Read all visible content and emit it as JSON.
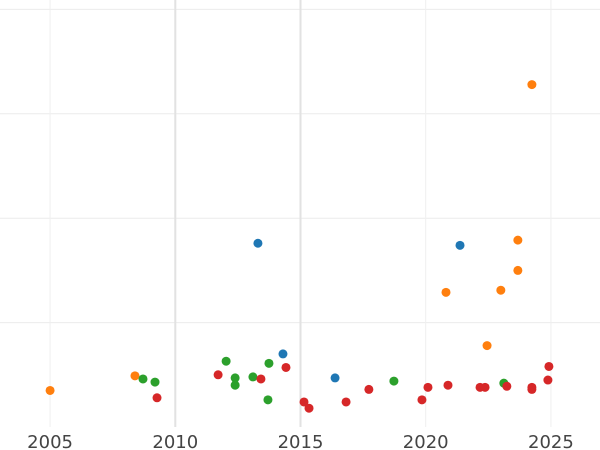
{
  "chart_data": {
    "type": "scatter",
    "title": "",
    "xlabel": "",
    "ylabel": "",
    "xlim": [
      2003.0,
      2026.96
    ],
    "ylim": [
      0,
      4.09
    ],
    "grid": true,
    "x_ticks": [
      2005,
      2010,
      2015,
      2020,
      2025
    ],
    "x_tick_labels": [
      "2005",
      "2010",
      "2015",
      "2020",
      "2025"
    ],
    "y_gridlines": [
      1,
      2,
      3,
      4
    ],
    "colors": {
      "orange": "#ff7f0e",
      "blue": "#1f77b4",
      "green": "#2ca02c",
      "red": "#d62728"
    },
    "series": [
      {
        "name": "orange",
        "color": "#ff7f0e",
        "points": [
          [
            2005.0,
            0.35
          ],
          [
            2008.39,
            0.49
          ],
          [
            2024.24,
            3.28
          ],
          [
            2023.68,
            1.79
          ],
          [
            2023.68,
            1.5
          ],
          [
            2020.81,
            1.29
          ],
          [
            2023.0,
            1.31
          ],
          [
            2022.45,
            0.78
          ]
        ]
      },
      {
        "name": "blue",
        "color": "#1f77b4",
        "points": [
          [
            2013.3,
            1.76
          ],
          [
            2021.37,
            1.74
          ],
          [
            2014.3,
            0.7
          ],
          [
            2016.38,
            0.47
          ]
        ]
      },
      {
        "name": "green",
        "color": "#2ca02c",
        "points": [
          [
            2008.71,
            0.46
          ],
          [
            2009.19,
            0.43
          ],
          [
            2012.03,
            0.63
          ],
          [
            2012.39,
            0.47
          ],
          [
            2012.39,
            0.4
          ],
          [
            2013.1,
            0.48
          ],
          [
            2013.74,
            0.61
          ],
          [
            2013.7,
            0.26
          ],
          [
            2018.73,
            0.44
          ],
          [
            2023.12,
            0.42
          ]
        ]
      },
      {
        "name": "red",
        "color": "#d62728",
        "points": [
          [
            2009.27,
            0.28
          ],
          [
            2011.71,
            0.5
          ],
          [
            2013.42,
            0.46
          ],
          [
            2014.42,
            0.57
          ],
          [
            2015.14,
            0.24
          ],
          [
            2015.34,
            0.18
          ],
          [
            2016.82,
            0.24
          ],
          [
            2017.73,
            0.36
          ],
          [
            2019.85,
            0.26
          ],
          [
            2020.09,
            0.38
          ],
          [
            2020.89,
            0.4
          ],
          [
            2022.17,
            0.38
          ],
          [
            2022.37,
            0.38
          ],
          [
            2023.24,
            0.39
          ],
          [
            2024.24,
            0.38
          ],
          [
            2024.24,
            0.36
          ],
          [
            2024.92,
            0.58
          ],
          [
            2024.88,
            0.45
          ]
        ]
      }
    ]
  }
}
